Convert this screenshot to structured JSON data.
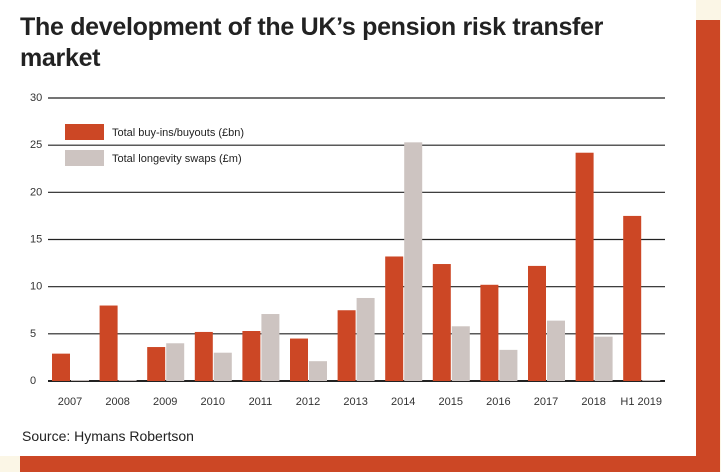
{
  "chart_data": {
    "type": "bar",
    "title": "The development of the UK’s pension risk transfer market",
    "categories": [
      "2007",
      "2008",
      "2009",
      "2010",
      "2011",
      "2012",
      "2013",
      "2014",
      "2015",
      "2016",
      "2017",
      "2018",
      "H1 2019"
    ],
    "series": [
      {
        "name": "Total buy-ins/buyouts (£bn)",
        "color": "#cc4725",
        "values": [
          2.9,
          8.0,
          3.6,
          5.2,
          5.3,
          4.5,
          7.5,
          13.2,
          12.4,
          10.2,
          12.2,
          24.2,
          17.5
        ]
      },
      {
        "name": "Total longevity swaps (£m)",
        "color": "#cdc4c1",
        "values": [
          0.1,
          0.1,
          4.0,
          3.0,
          7.1,
          2.1,
          8.8,
          25.3,
          5.8,
          3.3,
          6.4,
          4.7,
          0.1
        ]
      }
    ],
    "yticks": [
      0,
      5,
      10,
      15,
      20,
      25,
      30
    ],
    "ylim": [
      0,
      30
    ],
    "grid": true,
    "legend": "top-left",
    "source": "Source: Hymans Robertson"
  }
}
